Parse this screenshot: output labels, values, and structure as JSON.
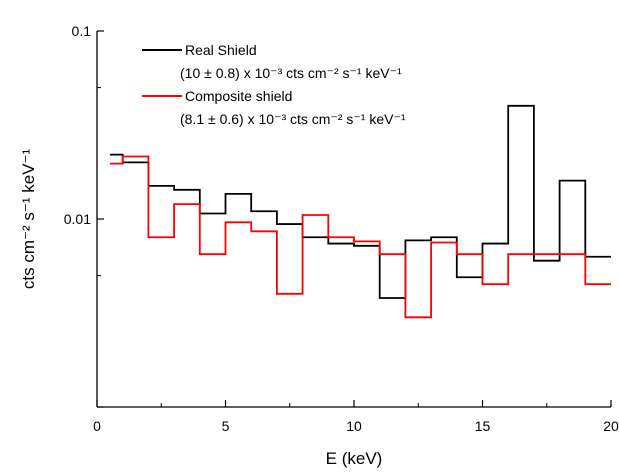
{
  "chart_data": {
    "type": "line",
    "step": true,
    "xlabel": "E (keV)",
    "ylabel": "cts cm⁻² s⁻¹ keV⁻¹",
    "xlim": [
      0,
      20
    ],
    "ylim": [
      0.001,
      0.1
    ],
    "yscale": "log",
    "grid": false,
    "legend_position": "top-left",
    "x_ticks": [
      0,
      5,
      10,
      15,
      20
    ],
    "x_tick_labels": [
      "0",
      "5",
      "10",
      "15",
      "20"
    ],
    "y_ticks": [
      0.01,
      0.1
    ],
    "y_tick_labels": [
      "0.01",
      "0.1"
    ],
    "bin_edges": [
      0.5,
      1,
      2,
      3,
      4,
      5,
      6,
      7,
      8,
      9,
      10,
      11,
      12,
      13,
      14,
      15,
      16,
      17,
      18,
      19,
      20
    ],
    "series": [
      {
        "name": "Real Shield",
        "label_rate": "(10 ± 0.8) x 10⁻³ cts cm⁻² s⁻¹ keV⁻¹",
        "color": "#000000",
        "values": [
          0.022,
          0.02,
          0.015,
          0.0143,
          0.0107,
          0.0136,
          0.011,
          0.0094,
          0.008,
          0.0074,
          0.0072,
          0.0038,
          0.0077,
          0.008,
          0.0049,
          0.0074,
          0.04,
          0.006,
          0.016,
          0.0063
        ]
      },
      {
        "name": "Composite shield",
        "label_rate": "(8.1 ± 0.6) x 10⁻³ cts cm⁻² s⁻¹ keV⁻¹",
        "color": "#ff0000",
        "values": [
          0.0197,
          0.0215,
          0.008,
          0.012,
          0.0065,
          0.0096,
          0.0086,
          0.004,
          0.0105,
          0.008,
          0.0076,
          0.0065,
          0.003,
          0.0075,
          0.0065,
          0.0045,
          0.0065,
          0.0065,
          0.0065,
          0.0045
        ]
      }
    ]
  }
}
